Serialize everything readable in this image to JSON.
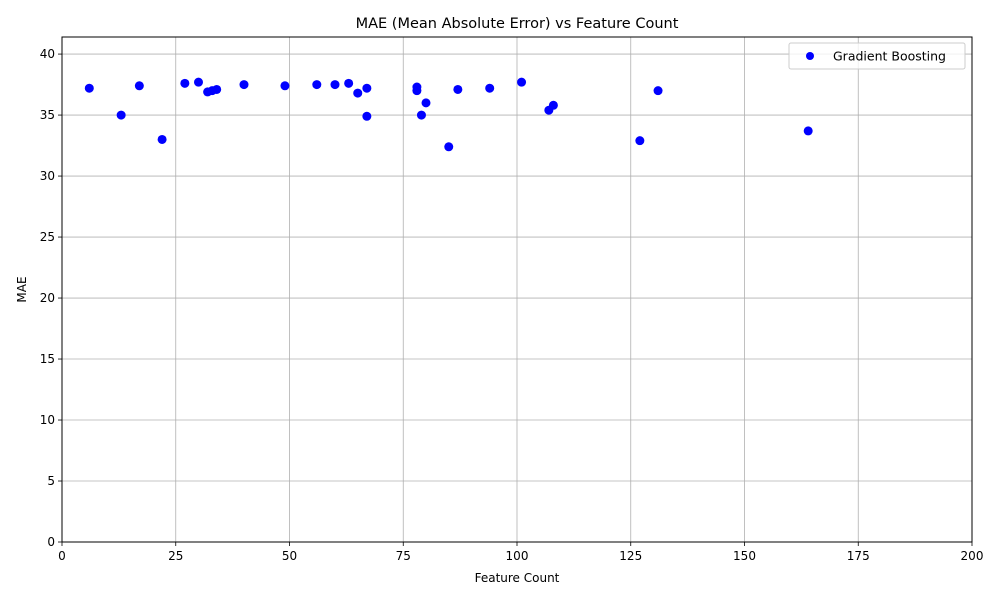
{
  "chart_data": {
    "type": "scatter",
    "title": "MAE (Mean Absolute Error) vs Feature Count",
    "xlabel": "Feature Count",
    "ylabel": "MAE",
    "xlim": [
      0,
      200
    ],
    "ylim": [
      0,
      41.4
    ],
    "xticks": [
      0,
      25,
      50,
      75,
      100,
      125,
      150,
      175,
      200
    ],
    "yticks": [
      0,
      5,
      10,
      15,
      20,
      25,
      30,
      35,
      40
    ],
    "grid": true,
    "legend_position": "top-right",
    "series": [
      {
        "name": "Gradient Boosting",
        "color": "#0000ff",
        "points": [
          {
            "x": 6,
            "y": 37.2
          },
          {
            "x": 13,
            "y": 35.0
          },
          {
            "x": 17,
            "y": 37.4
          },
          {
            "x": 22,
            "y": 33.0
          },
          {
            "x": 27,
            "y": 37.6
          },
          {
            "x": 30,
            "y": 37.7
          },
          {
            "x": 32,
            "y": 36.9
          },
          {
            "x": 33,
            "y": 37.0
          },
          {
            "x": 34,
            "y": 37.1
          },
          {
            "x": 40,
            "y": 37.5
          },
          {
            "x": 49,
            "y": 37.4
          },
          {
            "x": 56,
            "y": 37.5
          },
          {
            "x": 60,
            "y": 37.5
          },
          {
            "x": 63,
            "y": 37.6
          },
          {
            "x": 65,
            "y": 36.8
          },
          {
            "x": 67,
            "y": 37.2
          },
          {
            "x": 67,
            "y": 34.9
          },
          {
            "x": 78,
            "y": 37.3
          },
          {
            "x": 78,
            "y": 37.0
          },
          {
            "x": 79,
            "y": 35.0
          },
          {
            "x": 80,
            "y": 36.0
          },
          {
            "x": 85,
            "y": 32.4
          },
          {
            "x": 87,
            "y": 37.1
          },
          {
            "x": 94,
            "y": 37.2
          },
          {
            "x": 101,
            "y": 37.7
          },
          {
            "x": 107,
            "y": 35.4
          },
          {
            "x": 108,
            "y": 35.8
          },
          {
            "x": 127,
            "y": 32.9
          },
          {
            "x": 131,
            "y": 37.0
          },
          {
            "x": 164,
            "y": 33.7
          }
        ]
      }
    ]
  }
}
